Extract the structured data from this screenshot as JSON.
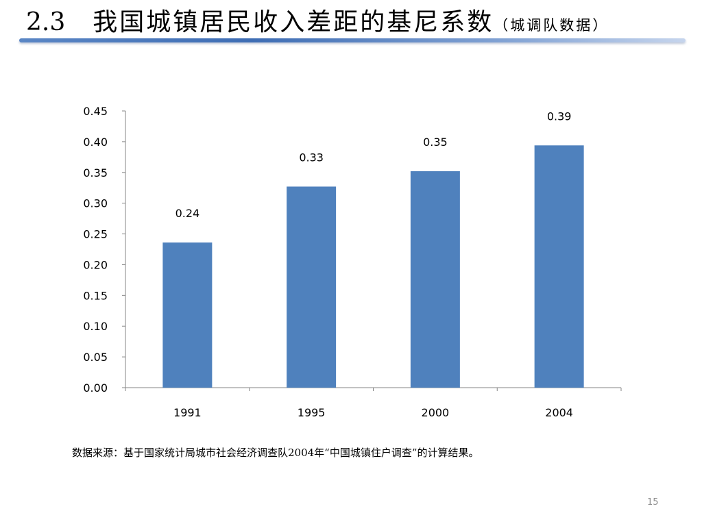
{
  "slide": {
    "title_number": "2.3",
    "title": "我国城镇居民收入差距的基尼系数",
    "title_note": "（城调队数据）",
    "footnote": "数据来源：基于国家统计局城市社会经济调查队2004年“中国城镇住户调查”的计算结果。",
    "page_number": "15"
  },
  "chart_data": {
    "type": "bar",
    "categories": [
      "1991",
      "1995",
      "2000",
      "2004"
    ],
    "values": [
      0.236,
      0.327,
      0.352,
      0.394
    ],
    "data_labels": [
      "0.24",
      "0.33",
      "0.35",
      "0.39"
    ],
    "y_ticks": [
      "0.00",
      "0.05",
      "0.10",
      "0.15",
      "0.20",
      "0.25",
      "0.30",
      "0.35",
      "0.40",
      "0.45"
    ],
    "ylim": [
      0,
      0.45
    ],
    "xlabel": "",
    "ylabel": "",
    "grid": false,
    "legend": "none",
    "bar_color": "#4F81BD",
    "axis_color": "#868686"
  }
}
